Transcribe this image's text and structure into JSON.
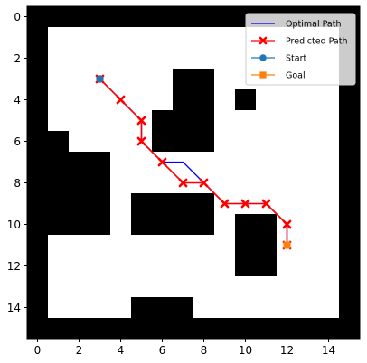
{
  "chart_data": {
    "type": "grid-path",
    "title": "",
    "xlabel": "",
    "ylabel": "",
    "grid_size": [
      16,
      16
    ],
    "xlim": [
      -0.5,
      15.5
    ],
    "ylim": [
      15.5,
      -0.5
    ],
    "x_ticks": [
      0,
      2,
      4,
      6,
      8,
      10,
      12,
      14
    ],
    "y_ticks": [
      0,
      2,
      4,
      6,
      8,
      10,
      12,
      14
    ],
    "obstacle_cells": [
      [
        7,
        3
      ],
      [
        8,
        3
      ],
      [
        7,
        4
      ],
      [
        8,
        4
      ],
      [
        10,
        4
      ],
      [
        6,
        5
      ],
      [
        7,
        5
      ],
      [
        8,
        5
      ],
      [
        6,
        6
      ],
      [
        7,
        6
      ],
      [
        8,
        6
      ],
      [
        0,
        6
      ],
      [
        1,
        6
      ],
      [
        0,
        7
      ],
      [
        1,
        7
      ],
      [
        2,
        7
      ],
      [
        3,
        7
      ],
      [
        0,
        8
      ],
      [
        1,
        8
      ],
      [
        2,
        8
      ],
      [
        3,
        8
      ],
      [
        0,
        9
      ],
      [
        1,
        9
      ],
      [
        2,
        9
      ],
      [
        3,
        9
      ],
      [
        0,
        10
      ],
      [
        1,
        10
      ],
      [
        2,
        10
      ],
      [
        3,
        10
      ],
      [
        5,
        9
      ],
      [
        6,
        9
      ],
      [
        7,
        9
      ],
      [
        8,
        9
      ],
      [
        5,
        10
      ],
      [
        6,
        10
      ],
      [
        7,
        10
      ],
      [
        8,
        10
      ],
      [
        10,
        10
      ],
      [
        11,
        10
      ],
      [
        10,
        11
      ],
      [
        11,
        11
      ],
      [
        10,
        12
      ],
      [
        11,
        12
      ],
      [
        5,
        14
      ],
      [
        6,
        14
      ],
      [
        7,
        14
      ]
    ],
    "series": [
      {
        "name": "Optimal Path",
        "color": "#0000ff",
        "marker": "none",
        "points": [
          [
            3,
            3
          ],
          [
            4,
            4
          ],
          [
            5,
            5
          ],
          [
            5,
            6
          ],
          [
            6,
            7
          ],
          [
            7,
            7
          ],
          [
            8,
            8
          ],
          [
            9,
            9
          ],
          [
            10,
            9
          ],
          [
            11,
            9
          ],
          [
            12,
            10
          ],
          [
            12,
            11
          ]
        ]
      },
      {
        "name": "Predicted Path",
        "color": "#ff0000",
        "marker": "x",
        "points": [
          [
            3,
            3
          ],
          [
            4,
            4
          ],
          [
            5,
            5
          ],
          [
            5,
            6
          ],
          [
            6,
            7
          ],
          [
            7,
            8
          ],
          [
            8,
            8
          ],
          [
            9,
            9
          ],
          [
            10,
            9
          ],
          [
            11,
            9
          ],
          [
            12,
            10
          ],
          [
            12,
            11
          ]
        ]
      }
    ],
    "start": {
      "name": "Start",
      "color": "#1f77b4",
      "point": [
        3,
        3
      ]
    },
    "goal": {
      "name": "Goal",
      "color": "#ff7f0e",
      "point": [
        12,
        11
      ]
    },
    "legend": {
      "placement": "top-right",
      "entries": [
        "Optimal Path",
        "Predicted Path",
        "Start",
        "Goal"
      ]
    }
  }
}
